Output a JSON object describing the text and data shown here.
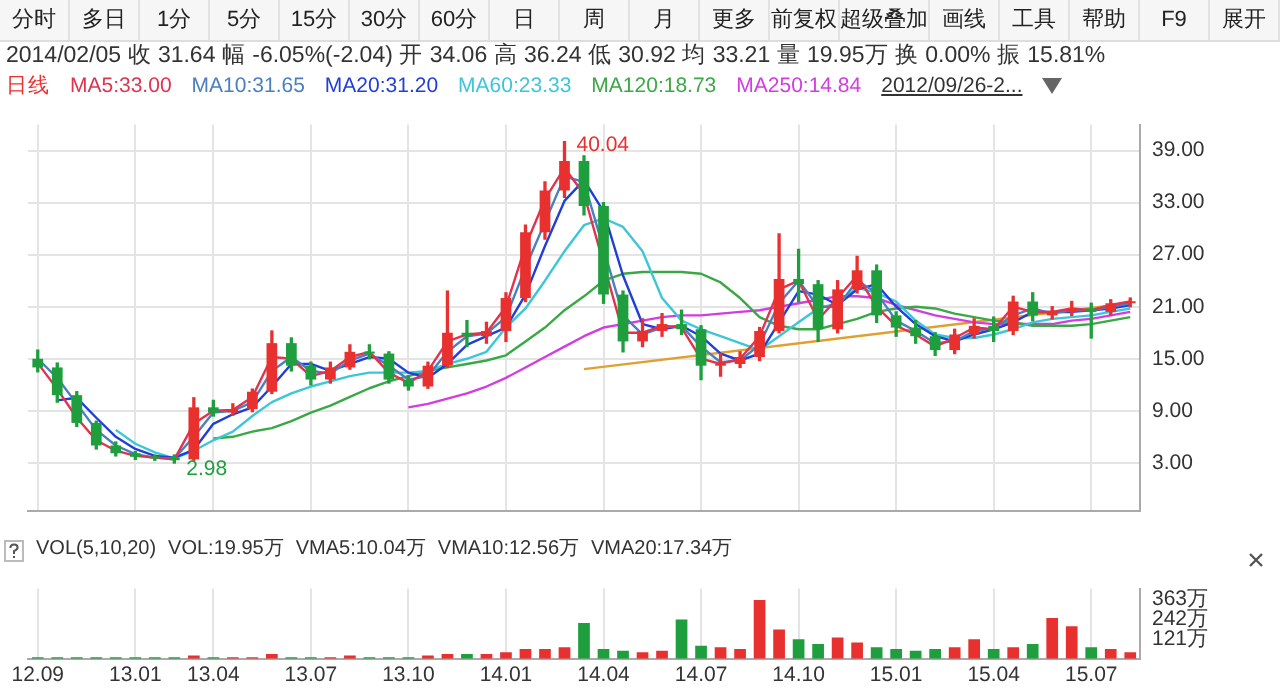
{
  "chart_data": [
    {
      "type": "other",
      "annotations": [
        "分时",
        "多日",
        "1分",
        "5分",
        "15分",
        "30分",
        "60分",
        "日",
        "周",
        "月",
        "更多",
        "前复权",
        "超级叠加",
        "画线",
        "工具",
        "帮助",
        "F9",
        "展开"
      ]
    },
    {
      "type": "candlestick",
      "subtitle": "2014/02/05 收 31.64 幅 -6.05%(-2.04) 开 34.06 高 36.24 低 30.92 均 33.21 量 19.95万 换 0.00% 振 15.81%",
      "categories": [
        "12.09",
        null,
        null,
        null,
        null,
        "13.01",
        null,
        null,
        null,
        "13.04",
        null,
        null,
        null,
        null,
        "13.07",
        null,
        null,
        null,
        null,
        "13.10",
        null,
        null,
        null,
        null,
        "14.01",
        null,
        null,
        null,
        null,
        "14.04",
        null,
        null,
        null,
        null,
        "14.07",
        null,
        null,
        null,
        null,
        "14.10",
        null,
        null,
        null,
        null,
        "15.01",
        null,
        null,
        null,
        null,
        "15.04",
        null,
        null,
        null,
        null,
        "15.07",
        null,
        null
      ],
      "ohlc": [
        [
          15.0,
          16.0,
          13.5,
          14.0
        ],
        [
          14.0,
          14.5,
          10.0,
          10.8
        ],
        [
          10.8,
          11.2,
          7.2,
          7.6
        ],
        [
          7.6,
          7.8,
          4.6,
          5.0
        ],
        [
          5.0,
          5.4,
          3.8,
          4.1
        ],
        [
          4.1,
          4.3,
          3.4,
          3.7
        ],
        [
          3.7,
          3.9,
          3.3,
          3.5
        ],
        [
          3.6,
          3.9,
          2.98,
          3.3
        ],
        [
          3.4,
          10.5,
          3.3,
          9.4
        ],
        [
          9.4,
          10.2,
          8.4,
          8.8
        ],
        [
          8.8,
          9.8,
          8.5,
          9.2
        ],
        [
          9.2,
          11.5,
          8.9,
          11.2
        ],
        [
          11.2,
          18.2,
          11.0,
          16.8
        ],
        [
          16.8,
          17.4,
          13.6,
          14.2
        ],
        [
          14.2,
          14.6,
          12.0,
          12.6
        ],
        [
          12.6,
          14.6,
          12.2,
          14.0
        ],
        [
          14.0,
          16.6,
          13.8,
          15.8
        ],
        [
          15.8,
          16.6,
          15.0,
          15.6
        ],
        [
          15.6,
          15.8,
          12.2,
          12.6
        ],
        [
          12.6,
          13.0,
          11.4,
          11.8
        ],
        [
          11.8,
          14.6,
          11.6,
          14.2
        ],
        [
          14.2,
          22.8,
          14.0,
          18.0
        ],
        [
          18.0,
          19.4,
          16.4,
          17.6
        ],
        [
          17.6,
          19.2,
          16.8,
          18.2
        ],
        [
          18.2,
          22.6,
          17.0,
          22.0
        ],
        [
          22.0,
          30.4,
          21.6,
          29.6
        ],
        [
          29.6,
          35.4,
          28.8,
          34.4
        ],
        [
          34.4,
          40.04,
          33.6,
          37.8
        ],
        [
          37.8,
          38.4,
          31.6,
          32.6
        ],
        [
          32.6,
          33.0,
          21.4,
          22.4
        ],
        [
          22.4,
          22.8,
          15.8,
          17.0
        ],
        [
          17.0,
          19.6,
          16.4,
          18.2
        ],
        [
          18.2,
          20.2,
          17.6,
          19.0
        ],
        [
          19.0,
          20.6,
          17.8,
          18.4
        ],
        [
          18.4,
          18.8,
          12.6,
          14.2
        ],
        [
          14.2,
          15.6,
          13.0,
          14.4
        ],
        [
          14.4,
          15.8,
          14.0,
          15.2
        ],
        [
          15.2,
          18.6,
          14.8,
          18.2
        ],
        [
          18.2,
          29.4,
          18.0,
          24.2
        ],
        [
          24.2,
          27.6,
          21.6,
          23.6
        ],
        [
          23.6,
          24.0,
          17.0,
          18.4
        ],
        [
          18.4,
          24.0,
          18.0,
          23.0
        ],
        [
          23.0,
          26.8,
          22.6,
          25.2
        ],
        [
          25.2,
          25.8,
          19.2,
          20.0
        ],
        [
          20.0,
          20.4,
          17.6,
          18.6
        ],
        [
          18.6,
          19.4,
          16.8,
          17.6
        ],
        [
          17.6,
          18.0,
          15.4,
          16.0
        ],
        [
          16.0,
          18.4,
          15.6,
          17.8
        ],
        [
          17.8,
          19.6,
          17.4,
          18.8
        ],
        [
          18.8,
          19.8,
          17.0,
          18.2
        ],
        [
          18.2,
          22.2,
          17.8,
          21.6
        ],
        [
          21.6,
          22.6,
          19.4,
          20.0
        ],
        [
          20.0,
          21.0,
          19.6,
          20.4
        ],
        [
          20.4,
          21.6,
          20.0,
          20.8
        ],
        [
          20.8,
          21.4,
          17.4,
          20.4
        ],
        [
          20.4,
          21.8,
          20.0,
          21.4
        ],
        [
          21.4,
          22.0,
          21.0,
          21.6
        ]
      ],
      "colors": [
        "#1e9e3c",
        "#1e9e3c",
        "#1e9e3c",
        "#1e9e3c",
        "#1e9e3c",
        "#1e9e3c",
        "#1e9e3c",
        "#1e9e3c",
        "#e8312f",
        "#1e9e3c",
        "#e8312f",
        "#e8312f",
        "#e8312f",
        "#1e9e3c",
        "#1e9e3c",
        "#e8312f",
        "#e8312f",
        "#1e9e3c",
        "#1e9e3c",
        "#1e9e3c",
        "#e8312f",
        "#e8312f",
        "#1e9e3c",
        "#e8312f",
        "#e8312f",
        "#e8312f",
        "#e8312f",
        "#e8312f",
        "#1e9e3c",
        "#1e9e3c",
        "#1e9e3c",
        "#e8312f",
        "#e8312f",
        "#1e9e3c",
        "#1e9e3c",
        "#e8312f",
        "#e8312f",
        "#e8312f",
        "#e8312f",
        "#1e9e3c",
        "#1e9e3c",
        "#e8312f",
        "#e8312f",
        "#1e9e3c",
        "#1e9e3c",
        "#1e9e3c",
        "#1e9e3c",
        "#e8312f",
        "#e8312f",
        "#1e9e3c",
        "#e8312f",
        "#1e9e3c",
        "#e8312f",
        "#e8312f",
        "#1e9e3c",
        "#e8312f",
        "#e8312f"
      ],
      "series": [
        {
          "type": "line",
          "name": "MA5:33.00",
          "color": "#e0334f",
          "values": [
            14.5,
            11.5,
            8.2,
            5.6,
            4.4,
            3.8,
            3.6,
            3.4,
            7.5,
            9.0,
            9.1,
            10.6,
            15.2,
            15.0,
            13.0,
            13.6,
            15.2,
            15.8,
            13.4,
            12.2,
            13.6,
            17.0,
            17.8,
            18.0,
            21.0,
            28.0,
            33.4,
            37.0,
            34.0,
            null,
            18.0,
            18.0,
            18.8,
            18.6,
            15.0,
            14.4,
            15.0,
            17.6,
            23.0,
            24.0,
            19.5,
            22.0,
            24.6,
            21.0,
            18.8,
            17.8,
            16.4,
            17.4,
            18.6,
            18.4,
            21.0,
            20.4,
            20.4,
            20.8,
            20.6,
            21.2,
            21.6
          ]
        },
        {
          "type": "line",
          "name": "MA10:31.65",
          "color": "#4a7fc1",
          "values": [
            15.0,
            12.8,
            9.8,
            6.8,
            5.0,
            4.0,
            3.6,
            3.5,
            6.0,
            8.8,
            9.0,
            10.0,
            13.6,
            15.2,
            13.6,
            13.3,
            14.8,
            15.6,
            14.2,
            12.6,
            13.0,
            15.8,
            17.6,
            17.9,
            19.8,
            25.5,
            null,
            36.0,
            35.4,
            null,
            20.0,
            17.8,
            18.6,
            18.8,
            16.4,
            14.6,
            14.8,
            16.6,
            21.4,
            24.0,
            21.0,
            21.0,
            24.0,
            22.6,
            19.4,
            18.2,
            16.8,
            17.0,
            18.2,
            18.5,
            20.0,
            20.8,
            20.2,
            20.6,
            20.6,
            21.0,
            21.4
          ]
        },
        {
          "type": "line",
          "name": "MA20:31.20",
          "color": "#1f3fd8",
          "values": [
            null,
            10.2,
            10.5,
            8.2,
            6.0,
            4.6,
            3.8,
            3.6,
            4.5,
            7.5,
            8.6,
            9.4,
            11.8,
            14.4,
            14.4,
            13.6,
            14.4,
            15.2,
            15.0,
            13.4,
            12.8,
            14.4,
            16.6,
            17.6,
            18.6,
            22.4,
            28.0,
            33.2,
            35.6,
            32.0,
            24.6,
            19.0,
            18.4,
            18.8,
            17.6,
            15.6,
            14.8,
            15.6,
            19.2,
            22.8,
            22.4,
            21.2,
            23.0,
            23.6,
            21.0,
            19.0,
            17.6,
            17.0,
            17.8,
            18.4,
            19.2,
            20.4,
            20.4,
            20.4,
            20.6,
            20.8,
            21.2
          ]
        },
        {
          "type": "line",
          "name": "MA60:23.33",
          "color": "#3cc6d8",
          "values": [
            null,
            null,
            null,
            null,
            6.8,
            5.2,
            4.2,
            3.5,
            4.4,
            5.6,
            6.6,
            8.4,
            10.0,
            11.0,
            11.8,
            12.4,
            13.0,
            13.4,
            13.4,
            13.4,
            13.6,
            14.4,
            15.0,
            15.8,
            18.6,
            20.8,
            24.0,
            27.4,
            30.4,
            31.2,
            30.2,
            27.4,
            22.0,
            19.4,
            18.4,
            17.6,
            16.8,
            16.0,
            17.6,
            19.2,
            20.8,
            21.4,
            23.2,
            22.6,
            21.6,
            19.4,
            17.8,
            17.4,
            17.4,
            17.8,
            18.4,
            19.2,
            19.6,
            19.8,
            20.0,
            20.4,
            20.8
          ]
        },
        {
          "type": "line",
          "name": "MA120:18.73",
          "color": "#3aa844",
          "values": [
            null,
            null,
            null,
            null,
            null,
            null,
            null,
            null,
            null,
            5.8,
            6.0,
            6.6,
            7.0,
            7.8,
            8.8,
            9.6,
            10.6,
            11.6,
            12.4,
            13.0,
            13.6,
            14.0,
            14.4,
            14.8,
            15.4,
            17.0,
            18.6,
            20.6,
            22.2,
            24.0,
            24.8,
            25.0,
            25.0,
            25.0,
            24.8,
            23.8,
            22.0,
            19.8,
            18.8,
            18.4,
            18.4,
            19.0,
            19.6,
            20.4,
            20.8,
            21.0,
            20.8,
            20.2,
            19.8,
            19.4,
            19.2,
            18.8,
            18.8,
            18.8,
            19.0,
            19.4,
            19.8
          ]
        },
        {
          "type": "line",
          "name": "MA250:14.84",
          "color": "#d23ce0",
          "values": [
            null,
            null,
            null,
            null,
            null,
            null,
            null,
            null,
            null,
            null,
            null,
            null,
            null,
            null,
            null,
            null,
            null,
            null,
            null,
            9.4,
            9.8,
            10.4,
            11.0,
            11.8,
            12.8,
            14.0,
            15.2,
            16.4,
            17.6,
            18.6,
            19.0,
            19.4,
            19.8,
            20.0,
            20.0,
            20.2,
            20.4,
            20.6,
            21.0,
            21.4,
            21.8,
            22.2,
            22.2,
            22.0,
            21.2,
            20.6,
            20.0,
            19.6,
            19.2,
            19.0,
            19.0,
            19.0,
            19.0,
            19.4,
            19.6,
            20.0,
            20.4
          ]
        },
        {
          "type": "line",
          "color": "#e0a030",
          "values": [
            null,
            null,
            null,
            null,
            null,
            null,
            null,
            null,
            null,
            null,
            null,
            null,
            null,
            null,
            null,
            null,
            null,
            null,
            null,
            null,
            null,
            null,
            null,
            null,
            null,
            null,
            null,
            null,
            13.8,
            null,
            null,
            null,
            null,
            null,
            null,
            null,
            null,
            null,
            null,
            null,
            null,
            null,
            null,
            null,
            null,
            null,
            null,
            null,
            null,
            null,
            null,
            null,
            null,
            null,
            null,
            null,
            21.4
          ]
        }
      ],
      "ylim": [
        -2.6,
        42
      ],
      "yticks": [
        {
          "value": 3,
          "label": "3.00"
        },
        {
          "value": 9,
          "label": "9.00"
        },
        {
          "value": 15,
          "label": "15.00"
        },
        {
          "value": 21,
          "label": "21.00"
        },
        {
          "value": 27,
          "label": "27.00"
        },
        {
          "value": 33,
          "label": "33.00"
        },
        {
          "value": 39,
          "label": "39.00"
        }
      ],
      "grid": true,
      "tick_labels": "y",
      "legend": "top left",
      "annotations": [
        "日线",
        "2012/09/26-2...",
        "40.04",
        "2.98"
      ]
    },
    {
      "type": "bar",
      "categories": [
        "12.09",
        null,
        null,
        null,
        null,
        "13.01",
        null,
        null,
        null,
        "13.04",
        null,
        null,
        null,
        null,
        "13.07",
        null,
        null,
        null,
        null,
        "13.10",
        null,
        null,
        null,
        null,
        "14.01",
        null,
        null,
        null,
        null,
        "14.04",
        null,
        null,
        null,
        null,
        "14.07",
        null,
        null,
        null,
        null,
        "14.10",
        null,
        null,
        null,
        null,
        "15.01",
        null,
        null,
        null,
        null,
        "15.04",
        null,
        null,
        null,
        null,
        "15.07",
        null,
        null
      ],
      "values": [
        10,
        10,
        10,
        10,
        10,
        10,
        10,
        10,
        20,
        10,
        10,
        10,
        30,
        10,
        10,
        10,
        20,
        10,
        10,
        10,
        20,
        30,
        30,
        30,
        40,
        60,
        60,
        70,
        220,
        60,
        50,
        40,
        50,
        240,
        80,
        70,
        60,
        360,
        180,
        120,
        90,
        130,
        100,
        70,
        60,
        50,
        60,
        70,
        120,
        60,
        70,
        90,
        250,
        200,
        70,
        60,
        40
      ],
      "colors": [
        "#1e9e3c",
        "#1e9e3c",
        "#1e9e3c",
        "#1e9e3c",
        "#1e9e3c",
        "#1e9e3c",
        "#1e9e3c",
        "#1e9e3c",
        "#e8312f",
        "#1e9e3c",
        "#e8312f",
        "#e8312f",
        "#e8312f",
        "#1e9e3c",
        "#1e9e3c",
        "#e8312f",
        "#e8312f",
        "#1e9e3c",
        "#1e9e3c",
        "#1e9e3c",
        "#e8312f",
        "#e8312f",
        "#1e9e3c",
        "#e8312f",
        "#e8312f",
        "#e8312f",
        "#e8312f",
        "#e8312f",
        "#1e9e3c",
        "#1e9e3c",
        "#1e9e3c",
        "#e8312f",
        "#e8312f",
        "#1e9e3c",
        "#1e9e3c",
        "#e8312f",
        "#e8312f",
        "#e8312f",
        "#e8312f",
        "#1e9e3c",
        "#1e9e3c",
        "#e8312f",
        "#e8312f",
        "#1e9e3c",
        "#1e9e3c",
        "#1e9e3c",
        "#1e9e3c",
        "#e8312f",
        "#e8312f",
        "#1e9e3c",
        "#e8312f",
        "#1e9e3c",
        "#e8312f",
        "#e8312f",
        "#1e9e3c",
        "#e8312f",
        "#e8312f"
      ],
      "ylim": [
        0,
        430
      ],
      "yticks": [
        {
          "value": 121,
          "label": "121万"
        },
        {
          "value": 242,
          "label": "242万"
        },
        {
          "value": 363,
          "label": "363万"
        }
      ],
      "grid": "x",
      "annotations": [
        "VOL(5,10,20)",
        "VOL:19.95万",
        "VMA5:10.04万",
        "VMA10:12.56万",
        "VMA20:17.34万"
      ]
    }
  ]
}
